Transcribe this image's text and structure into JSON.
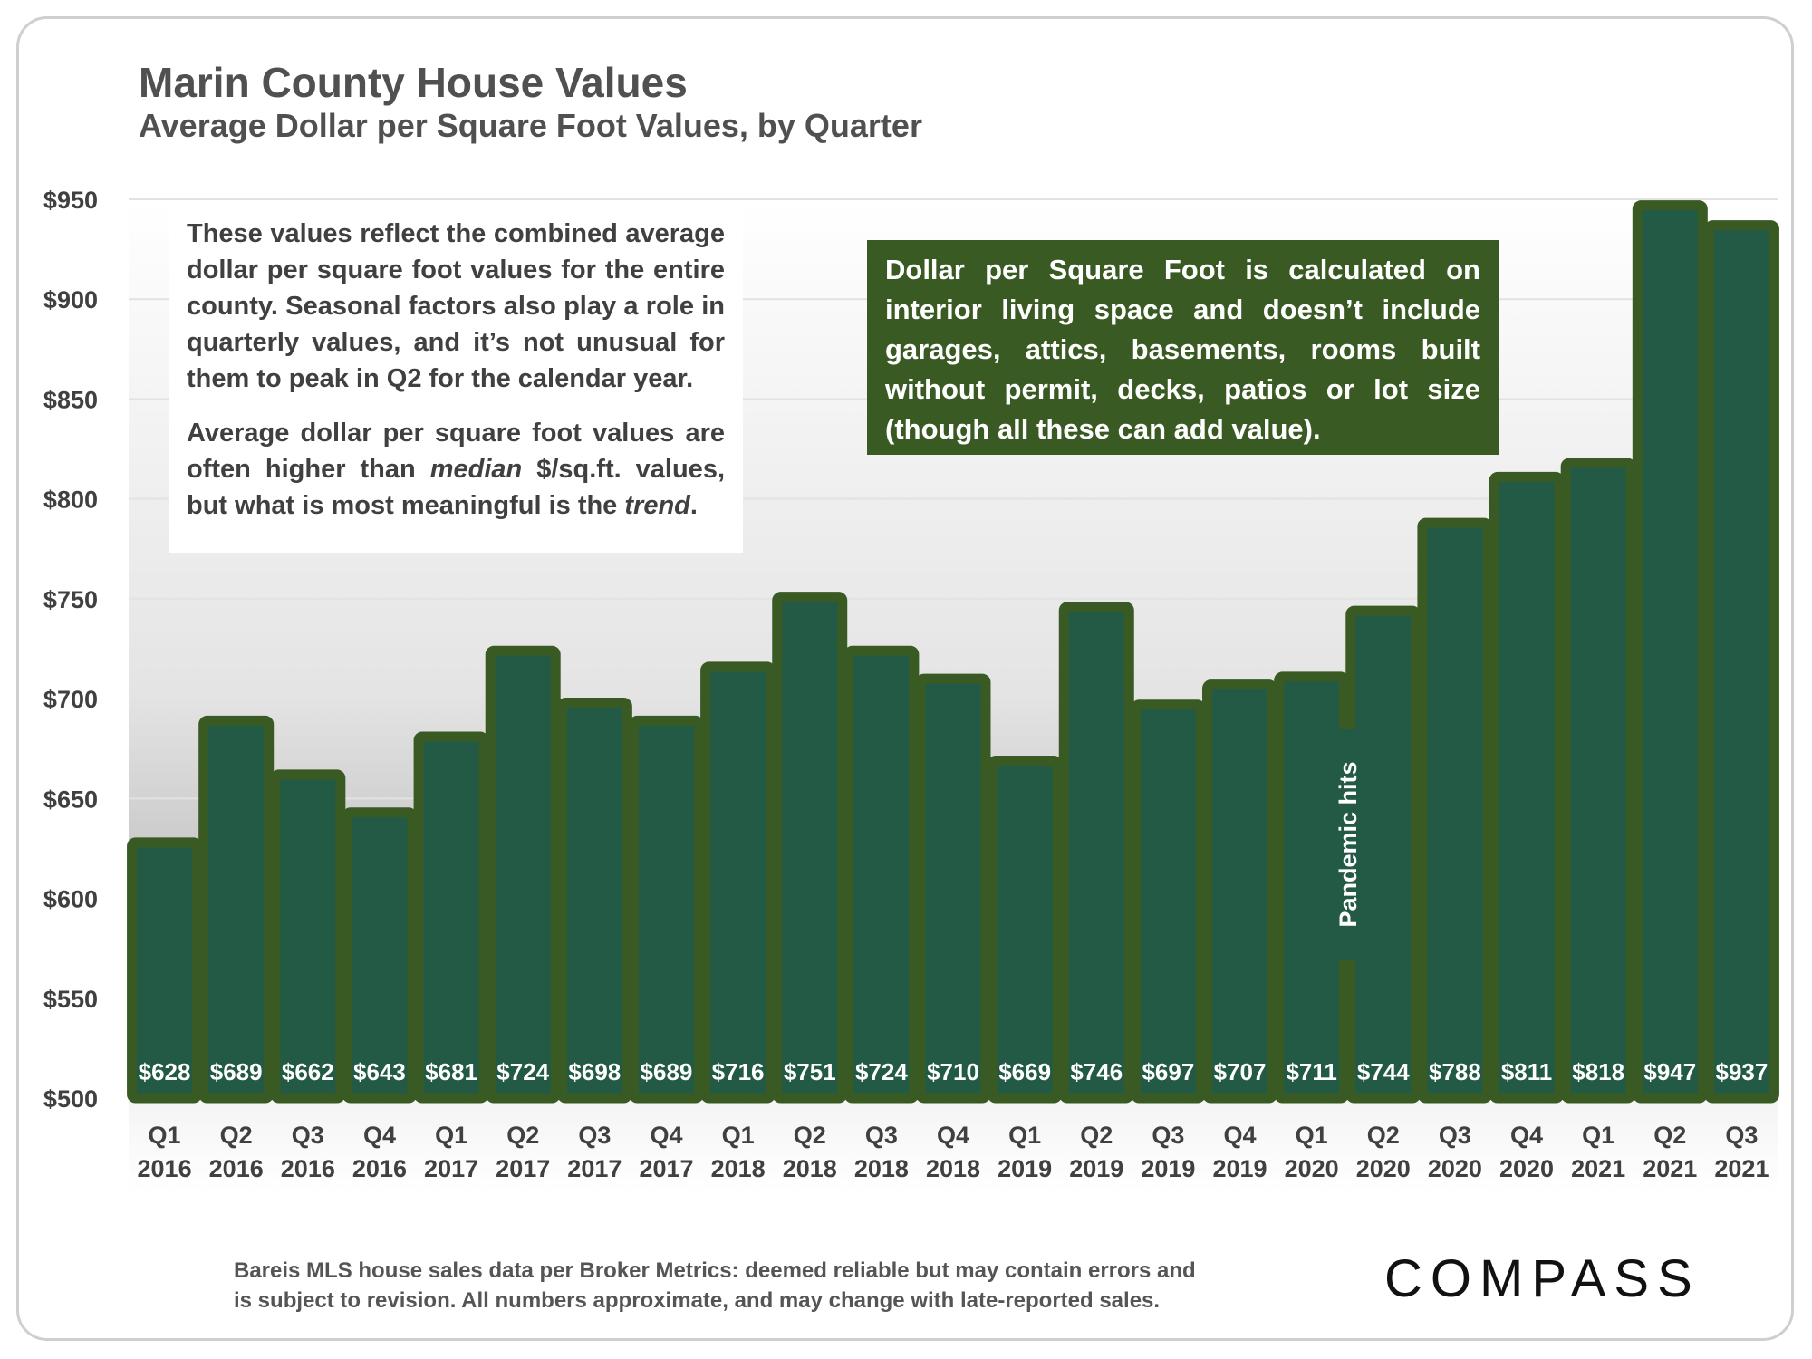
{
  "header": {
    "title": "Marin County House Values",
    "subtitle": "Average Dollar per Square Foot Values, by Quarter"
  },
  "notes": {
    "white_p1": "These values reflect the combined average dollar per square foot values for the entire county. Seasonal factors also play a role in quarterly values, and it’s not unusual for them to peak in Q2 for the calendar year.",
    "white_p2_a": "Average dollar per square foot values are often higher than ",
    "white_p2_em1": "median",
    "white_p2_b": " $/sq.ft. values, but what is most meaningful is the ",
    "white_p2_em2": "trend",
    "white_p2_c": ".",
    "green": "Dollar per Square Foot is calculated on interior living space and doesn’t include garages, attics, basements, rooms built without permit, decks, patios or lot size (though all these can add value)."
  },
  "annotation": {
    "pandemic": "Pandemic hits"
  },
  "footer": {
    "source_line1": "Bareis MLS house sales data per Broker Metrics:  deemed reliable but may contain errors and",
    "source_line2": "is subject to revision. All numbers approximate, and may change with late-reported sales.",
    "logo": "COMPASS"
  },
  "colors": {
    "bar_border": "#3a5a24",
    "bar_fill": "#225a45",
    "note_green": "#3a5a24"
  },
  "chart_data": {
    "type": "bar",
    "categories": [
      "Q1 2016",
      "Q2 2016",
      "Q3 2016",
      "Q4 2016",
      "Q1 2017",
      "Q2 2017",
      "Q3 2017",
      "Q4 2017",
      "Q1 2018",
      "Q2 2018",
      "Q3 2018",
      "Q4 2018",
      "Q1 2019",
      "Q2 2019",
      "Q3 2019",
      "Q4 2019",
      "Q1 2020",
      "Q2 2020",
      "Q3 2020",
      "Q4 2020",
      "Q1 2021",
      "Q2 2021",
      "Q3 2021"
    ],
    "values": [
      628,
      689,
      662,
      643,
      681,
      724,
      698,
      689,
      716,
      751,
      724,
      710,
      669,
      746,
      697,
      707,
      711,
      744,
      788,
      811,
      818,
      947,
      937
    ],
    "data_labels": [
      "$628",
      "$689",
      "$662",
      "$643",
      "$681",
      "$724",
      "$698",
      "$689",
      "$716",
      "$751",
      "$724",
      "$710",
      "$669",
      "$746",
      "$697",
      "$707",
      "$711",
      "$744",
      "$788",
      "$811",
      "$818",
      "$947",
      "$937"
    ],
    "ylim": [
      500,
      950
    ],
    "y_ticks": [
      500,
      550,
      600,
      650,
      700,
      750,
      800,
      850,
      900,
      950
    ],
    "y_tick_labels": [
      "$500",
      "$550",
      "$600",
      "$650",
      "$700",
      "$750",
      "$800",
      "$850",
      "$900",
      "$950"
    ],
    "grid": true,
    "title": "Marin County House Values",
    "subtitle": "Average Dollar per Square Foot Values, by Quarter"
  }
}
